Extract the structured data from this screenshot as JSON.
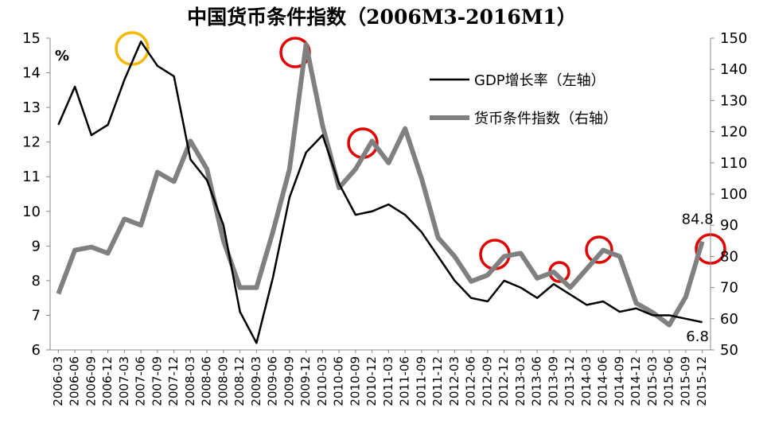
{
  "chart_data": {
    "type": "line",
    "title": "中国货币条件指数（2006M3-2016M1）",
    "y_label": "%",
    "categories": [
      "2006-03",
      "2006-06",
      "2006-09",
      "2006-12",
      "2007-03",
      "2007-06",
      "2007-09",
      "2007-12",
      "2008-03",
      "2008-06",
      "2008-09",
      "2008-12",
      "2009-03",
      "2009-06",
      "2009-09",
      "2009-12",
      "2010-03",
      "2010-06",
      "2010-09",
      "2010-12",
      "2011-03",
      "2011-06",
      "2011-09",
      "2011-12",
      "2012-03",
      "2012-06",
      "2012-09",
      "2012-12",
      "2013-03",
      "2013-06",
      "2013-09",
      "2013-12",
      "2014-03",
      "2014-06",
      "2014-09",
      "2014-12",
      "2015-03",
      "2015-06",
      "2015-09",
      "2015-12"
    ],
    "series": [
      {
        "name": "GDP增长率（左轴）",
        "color": "#000000",
        "axis": "y",
        "values": [
          12.5,
          13.6,
          12.2,
          12.5,
          13.8,
          14.9,
          14.2,
          13.9,
          11.5,
          10.9,
          9.6,
          7.1,
          6.2,
          8.1,
          10.4,
          11.7,
          12.2,
          10.8,
          9.9,
          10.0,
          10.2,
          9.9,
          9.4,
          8.7,
          8.0,
          7.5,
          7.4,
          8.0,
          7.8,
          7.5,
          7.9,
          7.6,
          7.3,
          7.4,
          7.1,
          7.2,
          7.0,
          7.0,
          6.9,
          6.8
        ]
      },
      {
        "name": "货币条件指数（右轴）",
        "color": "#808080",
        "axis": "y2",
        "values": [
          68,
          82,
          83,
          81,
          92,
          90,
          107,
          104,
          117,
          108,
          85,
          70,
          70,
          88,
          108,
          148,
          122,
          102,
          108,
          117,
          110,
          121,
          105,
          86,
          80,
          72,
          74,
          80,
          81,
          73,
          75,
          70,
          76,
          82,
          80,
          65,
          62,
          58,
          67,
          84.8
        ]
      }
    ],
    "ylim": [
      6,
      15
    ],
    "yticks": [
      6,
      7,
      8,
      9,
      10,
      11,
      12,
      13,
      14,
      15
    ],
    "y2lim": [
      50,
      150
    ],
    "y2ticks": [
      50,
      60,
      70,
      80,
      90,
      100,
      110,
      120,
      130,
      140,
      150
    ]
  }
}
